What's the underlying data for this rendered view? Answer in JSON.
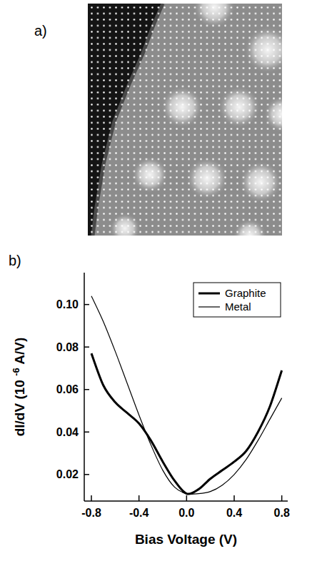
{
  "image_panel": {
    "panel_label": "a)"
  },
  "chart_data": {
    "type": "line",
    "panel_label": "b)",
    "x_label": "Bias Voltage (V)",
    "y_label": [
      "dI/dV (10 ",
      "-6",
      " A/V)"
    ],
    "x": [
      -0.8,
      -0.7,
      -0.6,
      -0.5,
      -0.4,
      -0.3,
      -0.2,
      -0.1,
      0.0,
      0.1,
      0.2,
      0.3,
      0.4,
      0.5,
      0.6,
      0.7,
      0.8
    ],
    "series": [
      {
        "name": "Graphite",
        "color": "#000000",
        "line_style": "thick",
        "values": [
          0.077,
          0.062,
          0.054,
          0.049,
          0.044,
          0.036,
          0.026,
          0.017,
          0.011,
          0.013,
          0.018,
          0.022,
          0.026,
          0.031,
          0.04,
          0.052,
          0.069
        ]
      },
      {
        "name": "Metal",
        "color": "#000000",
        "line_style": "thin",
        "values": [
          0.104,
          0.092,
          0.078,
          0.063,
          0.048,
          0.034,
          0.022,
          0.014,
          0.011,
          0.011,
          0.012,
          0.015,
          0.02,
          0.027,
          0.036,
          0.046,
          0.056
        ]
      }
    ],
    "xlim": [
      -0.86,
      0.85
    ],
    "xticks": [
      -0.8,
      -0.4,
      {
        "value": 0.0,
        "label": "0.0"
      },
      0.4,
      0.8
    ],
    "ylim": [
      0.0075,
      0.115
    ],
    "yticks": [
      0.02,
      0.04,
      0.06,
      0.08,
      {
        "value": 0.1,
        "label": "0.10"
      }
    ],
    "grid": false,
    "legend": "top-right"
  }
}
